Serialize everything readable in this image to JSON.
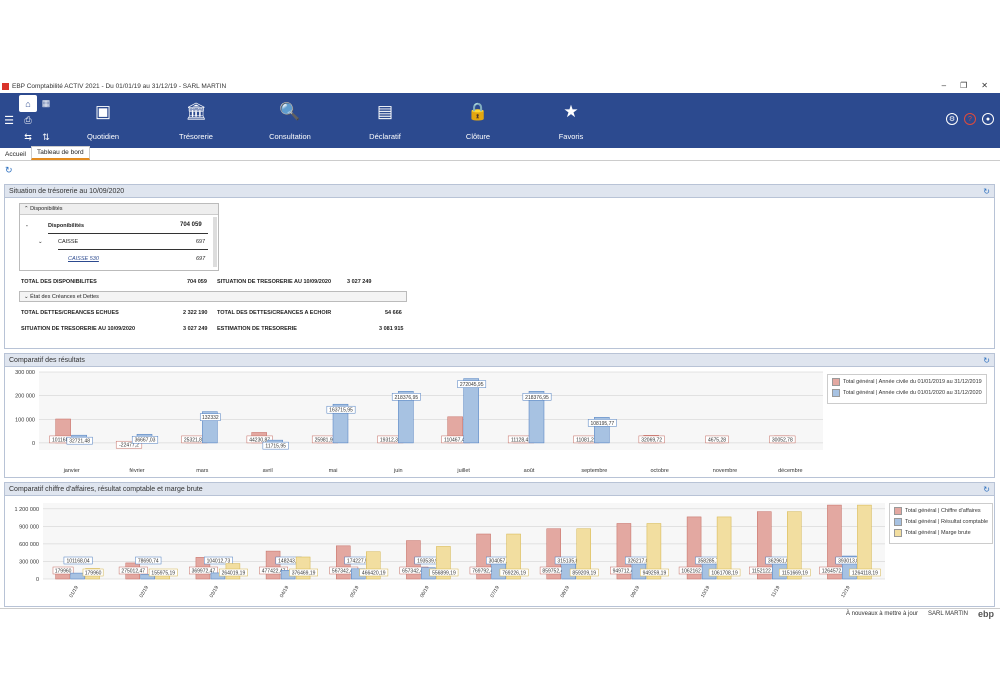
{
  "window": {
    "title": "EBP Comptabilité ACTIV 2021 - Du 01/01/19 au 31/12/19 - SARL MARTIN"
  },
  "ribbon": {
    "modules": [
      {
        "label": "Quotidien",
        "icon": "calendar-icon",
        "glyph": "▣"
      },
      {
        "label": "Trésorerie",
        "icon": "bank-icon",
        "glyph": "🏛"
      },
      {
        "label": "Consultation",
        "icon": "document-search-icon",
        "glyph": "🔍"
      },
      {
        "label": "Déclaratif",
        "icon": "tax-document-icon",
        "glyph": "▤"
      },
      {
        "label": "Clôture",
        "icon": "lock-icon",
        "glyph": "🔒"
      },
      {
        "label": "Favoris",
        "icon": "star-icon",
        "glyph": "★"
      }
    ]
  },
  "tabs": {
    "accueil": "Accueil",
    "tableau": "Tableau de bord"
  },
  "treso": {
    "title": "Situation de trésorerie au 10/09/2020",
    "dispo_header": "Disponibilités",
    "dispo_label": "Disponibilités",
    "dispo_value": "704 059",
    "caisse_label": "CAISSE",
    "caisse_value": "697",
    "caisse530_label": "CAISSE 530",
    "caisse530_value": "697",
    "total_dispo_label": "TOTAL DES DISPONIBILITES",
    "total_dispo_value": "704 059",
    "situation_label": "SITUATION DE TRESORERIE AU 10/09/2020",
    "situation_value": "3 027 249",
    "creances_header": "État des Créances et Dettes",
    "dettes_echues_label": "TOTAL DETTES/CREANCES ECHUES",
    "dettes_echues_value": "2 322 190",
    "dettes_echoir_label": "TOTAL DES DETTES/CREANCES A ECHOIR",
    "dettes_echoir_value": "54 666",
    "situation2_label": "SITUATION DE TRESORERIE AU 10/09/2020",
    "situation2_value": "3 027 249",
    "estimation_label": "ESTIMATION DE TRESORERIE",
    "estimation_value": "3 081 915"
  },
  "chart_data": [
    {
      "type": "bar",
      "title": "Comparatif des résultats",
      "categories": [
        "janvier",
        "février",
        "mars",
        "avril",
        "mai",
        "juin",
        "juillet",
        "août",
        "septembre",
        "octobre",
        "novembre",
        "décembre"
      ],
      "ylim": [
        -30000,
        300000
      ],
      "yticks": [
        "300 000",
        "200 000",
        "100 000",
        "0"
      ],
      "series": [
        {
          "name": "Total général | Année civile du 01/01/2019 au 31/12/2019",
          "color": "#e3a8a1",
          "values": [
            101168.04,
            -22477.2,
            25321.83,
            44230.87,
            25981.92,
            19312.38,
            110467.41,
            11128.41,
            11081.21,
            32069.72,
            4675.28,
            30052.78
          ],
          "labels": [
            "101168,04",
            "-22477,2",
            "25321,83",
            "44230,87",
            "25981,92",
            "19312,38",
            "110467,41",
            "11128,41",
            "11081,21",
            "32069,72",
            "4675,28",
            "30052,78"
          ]
        },
        {
          "name": "Total général | Année civile du 01/01/2020 au 31/12/2020",
          "color": "#a7c2e2",
          "values": [
            32721.48,
            36667.03,
            132332,
            11715.95,
            163715.95,
            218376.95,
            272045.95,
            218376.95,
            108195.77,
            null,
            null,
            null
          ],
          "labels": [
            "32721,48",
            "36667,03",
            "132332",
            "11715,95",
            "163715,95",
            "218376,95",
            "272045,95",
            "218376,95",
            "108195,77",
            "",
            "",
            ""
          ]
        }
      ]
    },
    {
      "type": "bar",
      "title": "Comparatif chiffre d'affaires, résultat comptable et marge brute",
      "categories": [
        "01/19",
        "02/19",
        "03/19",
        "04/19",
        "05/19",
        "06/19",
        "07/19",
        "08/19",
        "09/19",
        "10/19",
        "11/19",
        "12/19"
      ],
      "ylim": [
        0,
        1300000
      ],
      "yticks": [
        "1 200 000",
        "900 000",
        "600 000",
        "300 000",
        "0"
      ],
      "series": [
        {
          "name": "Total général | Chiffre d'affaires",
          "color": "#e3a8a1",
          "values": [
            179960,
            275012.47,
            369972.47,
            477422.47,
            567342.47,
            657342.47,
            769792.47,
            859752.47,
            949712.47,
            1062162.47,
            1152122.47,
            1264572.47
          ],
          "labels": [
            "179960",
            "275012,47",
            "369972,47",
            "477422,47",
            "567342,47",
            "657342,47",
            "769792,47",
            "859752,47",
            "949712,47",
            "1062162,47",
            "1152122,47",
            "1264572,47"
          ]
        },
        {
          "name": "Total général | Résultat comptable",
          "color": "#a7c2e2",
          "values": [
            101168.04,
            78690.74,
            104012.73,
            148243.6,
            174227.52,
            193539.91,
            304057.4,
            315135.83,
            326217.04,
            358285.76,
            362961.04,
            393013.82
          ],
          "labels": [
            "101168,04",
            "78690,74",
            "104012,73",
            "148243,6",
            "174227,52",
            "193539,91",
            "304057,4",
            "315135,83",
            "326217,04",
            "358285,76",
            "362961,04",
            "393013,82"
          ]
        },
        {
          "name": "Total général | Marge brute",
          "color": "#f2deA0",
          "values": [
            179960,
            155975.19,
            264019.19,
            376469.19,
            466420.19,
            556899.19,
            769226.19,
            859209.19,
            949259.19,
            1061708.19,
            1151669.19,
            1264118.19
          ],
          "labels": [
            "179960",
            "155975,19",
            "264019,19",
            "376469,19",
            "466420,19",
            "556899,19",
            "769226,19",
            "859209,19",
            "949259,19",
            "1061708,19",
            "1151669,19",
            "1264118,19"
          ]
        }
      ]
    }
  ],
  "status": {
    "message": "À nouveaux à mettre à jour",
    "company": "SARL MARTIN",
    "brand": "ebp"
  }
}
